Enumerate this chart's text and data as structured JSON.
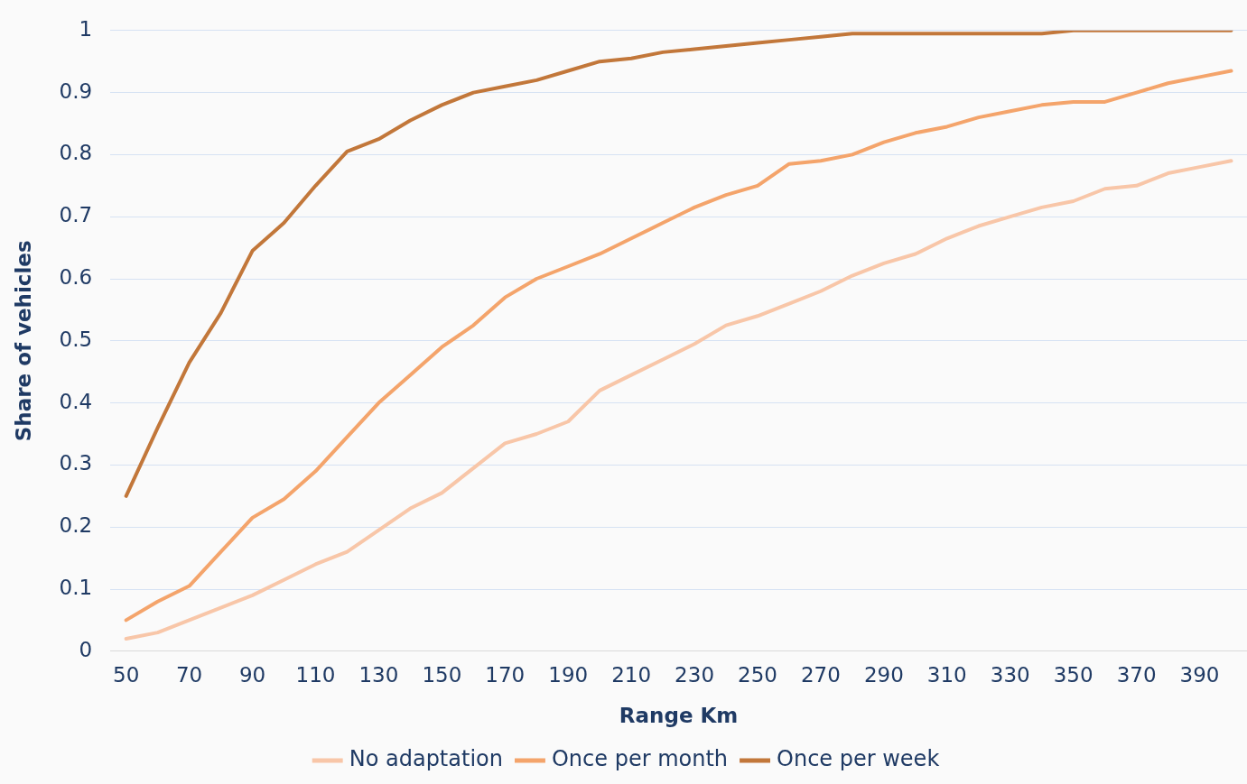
{
  "chart_data": {
    "type": "line",
    "xlabel": "Range Km",
    "ylabel": "Share of vehicles",
    "categories": [
      "50",
      null,
      "70",
      null,
      "90",
      null,
      "110",
      null,
      "130",
      null,
      "150",
      null,
      "170",
      null,
      "190",
      null,
      "210",
      null,
      "230",
      null,
      "250",
      null,
      "270",
      null,
      "290",
      null,
      "310",
      null,
      "330",
      null,
      "350",
      null,
      "370",
      null,
      "390",
      null
    ],
    "series": [
      {
        "name": "No adaptation",
        "color": "#f8c6a8",
        "values": [
          0.02,
          0.03,
          0.05,
          0.07,
          0.09,
          0.115,
          0.14,
          0.16,
          0.195,
          0.23,
          0.255,
          0.295,
          0.335,
          0.35,
          0.37,
          0.42,
          0.445,
          0.47,
          0.495,
          0.525,
          0.54,
          0.56,
          0.58,
          0.605,
          0.625,
          0.64,
          0.665,
          0.685,
          0.7,
          0.715,
          0.725,
          0.745,
          0.75,
          0.77,
          0.78,
          0.79
        ]
      },
      {
        "name": "Once per month",
        "color": "#f4a46b",
        "values": [
          0.05,
          0.08,
          0.105,
          0.16,
          0.215,
          0.245,
          0.29,
          0.345,
          0.4,
          0.445,
          0.49,
          0.525,
          0.57,
          0.6,
          0.62,
          0.64,
          0.665,
          0.69,
          0.715,
          0.735,
          0.75,
          0.785,
          0.79,
          0.8,
          0.82,
          0.835,
          0.845,
          0.86,
          0.87,
          0.88,
          0.885,
          0.885,
          0.9,
          0.915,
          0.925,
          0.935
        ]
      },
      {
        "name": "Once per week",
        "color": "#c2773a",
        "values": [
          0.25,
          0.36,
          0.465,
          0.545,
          0.645,
          0.69,
          0.75,
          0.805,
          0.825,
          0.855,
          0.88,
          0.9,
          0.91,
          0.92,
          0.935,
          0.95,
          0.955,
          0.965,
          0.97,
          0.975,
          0.98,
          0.985,
          0.99,
          0.995,
          0.995,
          0.995,
          0.995,
          0.995,
          0.995,
          0.995,
          1,
          1,
          1,
          1,
          1,
          1
        ]
      }
    ],
    "ylim": [
      0,
      1
    ],
    "yticks": [
      0,
      0.1,
      0.2,
      0.3,
      0.4,
      0.5,
      0.6,
      0.7,
      0.8,
      0.9,
      1
    ],
    "grid": "y",
    "legend": "bottom",
    "marker": "none",
    "line_style": "solid"
  }
}
